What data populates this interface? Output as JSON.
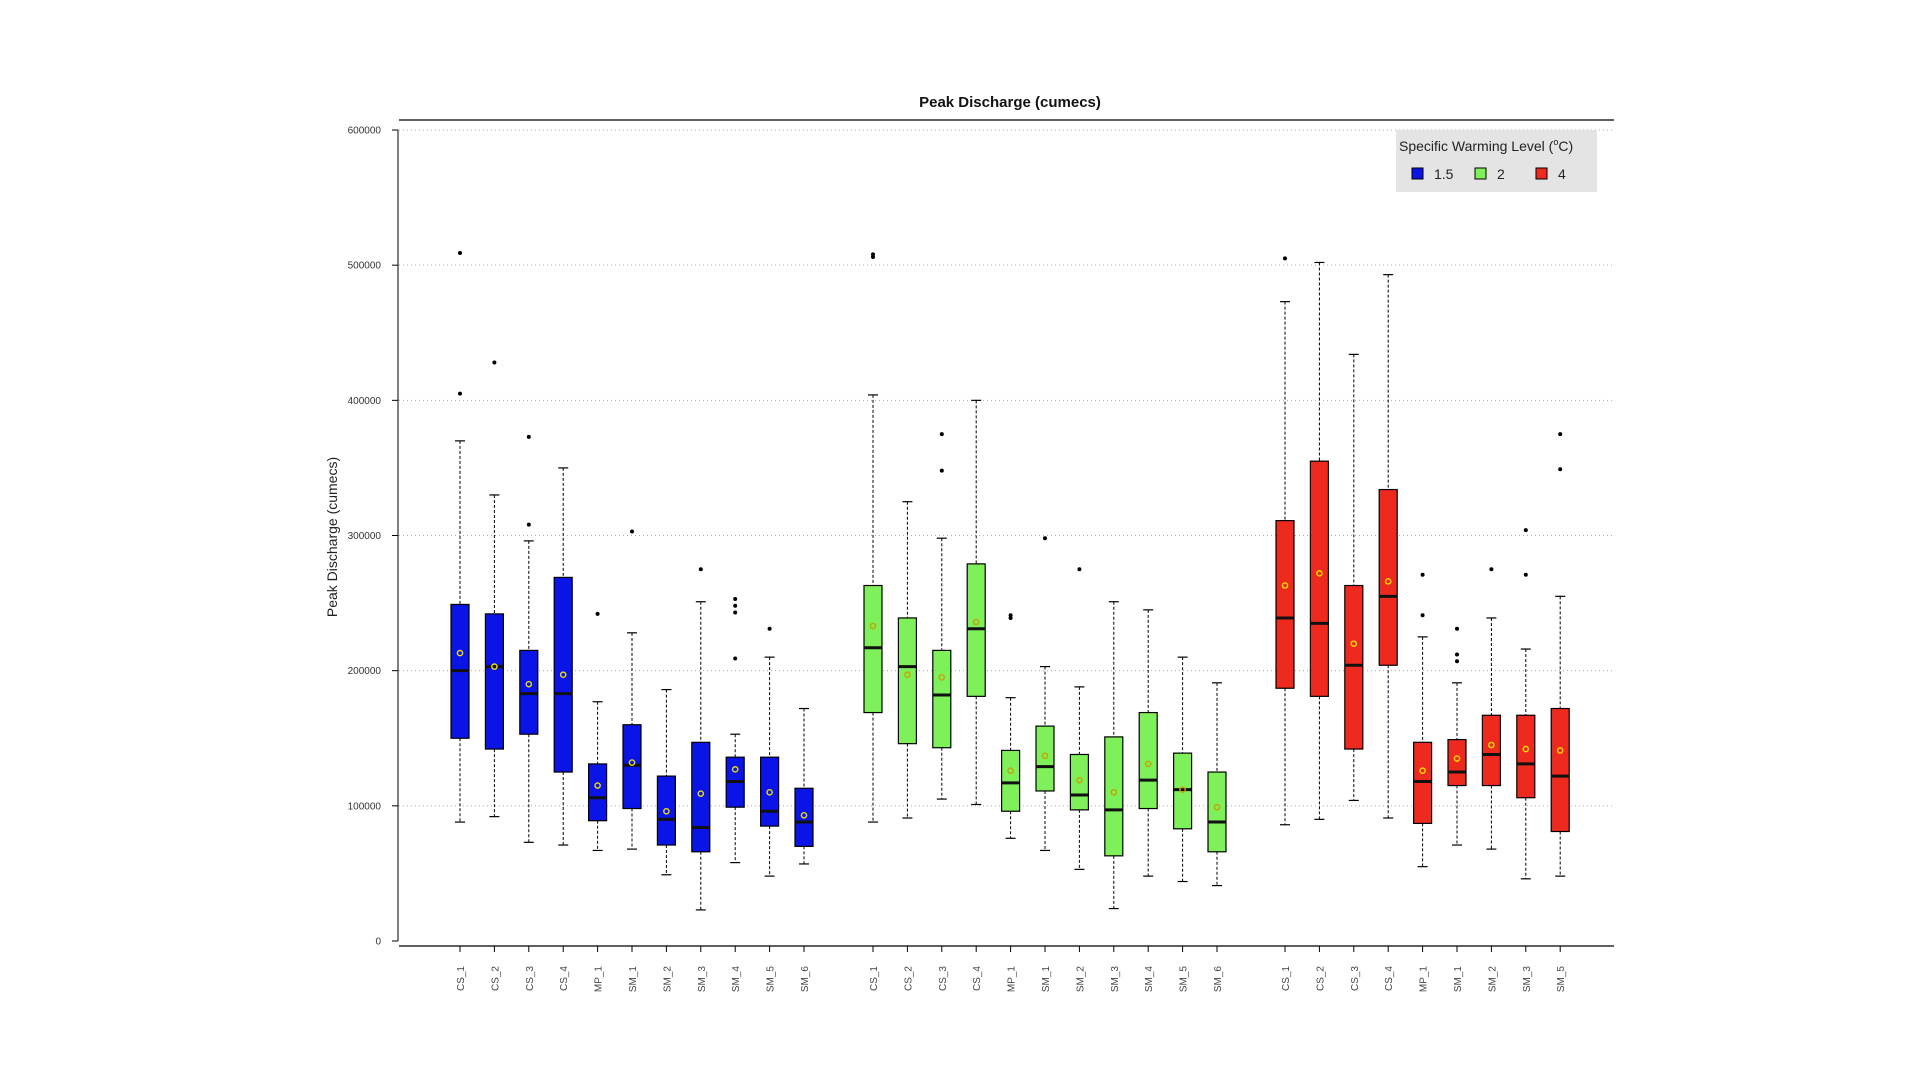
{
  "chart_data": {
    "type": "boxplot",
    "title": "Peak Discharge (cumecs)",
    "xlabel": "",
    "ylabel": "Peak Discharge (cumecs)",
    "ylim": [
      0,
      600000
    ],
    "yticks": [
      0,
      100000,
      200000,
      300000,
      400000,
      500000,
      600000
    ],
    "ytick_labels": [
      "0",
      "100000",
      "200000",
      "300000",
      "400000",
      "500000",
      "600000"
    ],
    "grid": true,
    "legend": {
      "title": "Specific Warming Level (",
      "title_sup": "o",
      "title_end": "C)",
      "position": "top-right",
      "entries": [
        {
          "label": "1.5",
          "color": "#0a14e6"
        },
        {
          "label": "2",
          "color": "#7df05a"
        },
        {
          "label": "4",
          "color": "#ee2a1f"
        }
      ]
    },
    "groups": [
      {
        "name": "1.5",
        "color": "#0a14e6",
        "mean_color": "#f0e000",
        "boxes": [
          {
            "label": "CS_1",
            "whisker_low": 88000,
            "q1": 150000,
            "median": 200000,
            "q3": 249000,
            "whisker_high": 370000,
            "mean": 213000,
            "outliers": [
              405000,
              509000
            ]
          },
          {
            "label": "CS_2",
            "whisker_low": 92000,
            "q1": 142000,
            "median": 203000,
            "q3": 242000,
            "whisker_high": 330000,
            "mean": 203000,
            "outliers": [
              428000
            ]
          },
          {
            "label": "CS_3",
            "whisker_low": 73000,
            "q1": 153000,
            "median": 183000,
            "q3": 215000,
            "whisker_high": 296000,
            "mean": 190000,
            "outliers": [
              308000,
              373000
            ]
          },
          {
            "label": "CS_4",
            "whisker_low": 71000,
            "q1": 125000,
            "median": 183000,
            "q3": 269000,
            "whisker_high": 350000,
            "mean": 197000,
            "outliers": []
          },
          {
            "label": "MP_1",
            "whisker_low": 67000,
            "q1": 89000,
            "median": 106000,
            "q3": 131000,
            "whisker_high": 177000,
            "mean": 115000,
            "outliers": [
              242000
            ]
          },
          {
            "label": "SM_1",
            "whisker_low": 68000,
            "q1": 98000,
            "median": 130000,
            "q3": 160000,
            "whisker_high": 228000,
            "mean": 132000,
            "outliers": [
              303000
            ]
          },
          {
            "label": "SM_2",
            "whisker_low": 49000,
            "q1": 71000,
            "median": 90000,
            "q3": 122000,
            "whisker_high": 186000,
            "mean": 96000,
            "outliers": []
          },
          {
            "label": "SM_3",
            "whisker_low": 23000,
            "q1": 66000,
            "median": 84000,
            "q3": 147000,
            "whisker_high": 251000,
            "mean": 109000,
            "outliers": [
              275000
            ]
          },
          {
            "label": "SM_4",
            "whisker_low": 58000,
            "q1": 99000,
            "median": 118000,
            "q3": 136000,
            "whisker_high": 153000,
            "mean": 127000,
            "outliers": [
              209000,
              243000,
              248000,
              253000
            ]
          },
          {
            "label": "SM_5",
            "whisker_low": 48000,
            "q1": 85000,
            "median": 96000,
            "q3": 136000,
            "whisker_high": 210000,
            "mean": 110000,
            "outliers": [
              231000
            ]
          },
          {
            "label": "SM_6",
            "whisker_low": 57000,
            "q1": 70000,
            "median": 88000,
            "q3": 113000,
            "whisker_high": 172000,
            "mean": 93000,
            "outliers": []
          }
        ]
      },
      {
        "name": "2",
        "color": "#7df05a",
        "mean_color": "#c8a000",
        "boxes": [
          {
            "label": "CS_1",
            "whisker_low": 88000,
            "q1": 169000,
            "median": 217000,
            "q3": 263000,
            "whisker_high": 404000,
            "mean": 233000,
            "outliers": [
              506000,
              508000
            ]
          },
          {
            "label": "CS_2",
            "whisker_low": 91000,
            "q1": 146000,
            "median": 203000,
            "q3": 239000,
            "whisker_high": 325000,
            "mean": 197000,
            "outliers": []
          },
          {
            "label": "CS_3",
            "whisker_low": 105000,
            "q1": 143000,
            "median": 182000,
            "q3": 215000,
            "whisker_high": 298000,
            "mean": 195000,
            "outliers": [
              348000,
              375000
            ]
          },
          {
            "label": "CS_4",
            "whisker_low": 101000,
            "q1": 181000,
            "median": 231000,
            "q3": 279000,
            "whisker_high": 400000,
            "mean": 236000,
            "outliers": []
          },
          {
            "label": "MP_1",
            "whisker_low": 76000,
            "q1": 96000,
            "median": 117000,
            "q3": 141000,
            "whisker_high": 180000,
            "mean": 126000,
            "outliers": [
              239000,
              241000
            ]
          },
          {
            "label": "SM_1",
            "whisker_low": 67000,
            "q1": 111000,
            "median": 129000,
            "q3": 159000,
            "whisker_high": 203000,
            "mean": 137000,
            "outliers": [
              298000
            ]
          },
          {
            "label": "SM_2",
            "whisker_low": 53000,
            "q1": 97000,
            "median": 108000,
            "q3": 138000,
            "whisker_high": 188000,
            "mean": 119000,
            "outliers": [
              275000
            ]
          },
          {
            "label": "SM_3",
            "whisker_low": 24000,
            "q1": 63000,
            "median": 97000,
            "q3": 151000,
            "whisker_high": 251000,
            "mean": 110000,
            "outliers": []
          },
          {
            "label": "SM_4",
            "whisker_low": 48000,
            "q1": 98000,
            "median": 119000,
            "q3": 169000,
            "whisker_high": 245000,
            "mean": 131000,
            "outliers": []
          },
          {
            "label": "SM_5",
            "whisker_low": 44000,
            "q1": 83000,
            "median": 112000,
            "q3": 139000,
            "whisker_high": 210000,
            "mean": 112000,
            "outliers": []
          },
          {
            "label": "SM_6",
            "whisker_low": 41000,
            "q1": 66000,
            "median": 88000,
            "q3": 125000,
            "whisker_high": 191000,
            "mean": 99000,
            "outliers": []
          }
        ]
      },
      {
        "name": "4",
        "color": "#ee2a1f",
        "mean_color": "#f0e000",
        "boxes": [
          {
            "label": "CS_1",
            "whisker_low": 86000,
            "q1": 187000,
            "median": 239000,
            "q3": 311000,
            "whisker_high": 473000,
            "mean": 263000,
            "outliers": [
              505000
            ]
          },
          {
            "label": "CS_2",
            "whisker_low": 90000,
            "q1": 181000,
            "median": 235000,
            "q3": 355000,
            "whisker_high": 502000,
            "mean": 272000,
            "outliers": []
          },
          {
            "label": "CS_3",
            "whisker_low": 104000,
            "q1": 142000,
            "median": 204000,
            "q3": 263000,
            "whisker_high": 434000,
            "mean": 220000,
            "outliers": []
          },
          {
            "label": "CS_4",
            "whisker_low": 91000,
            "q1": 204000,
            "median": 255000,
            "q3": 334000,
            "whisker_high": 493000,
            "mean": 266000,
            "outliers": []
          },
          {
            "label": "MP_1",
            "whisker_low": 55000,
            "q1": 87000,
            "median": 118000,
            "q3": 147000,
            "whisker_high": 225000,
            "mean": 126000,
            "outliers": [
              241000,
              271000
            ]
          },
          {
            "label": "SM_1",
            "whisker_low": 71000,
            "q1": 115000,
            "median": 125000,
            "q3": 149000,
            "whisker_high": 191000,
            "mean": 135000,
            "outliers": [
              207000,
              212000,
              231000
            ]
          },
          {
            "label": "SM_2",
            "whisker_low": 68000,
            "q1": 115000,
            "median": 138000,
            "q3": 167000,
            "whisker_high": 239000,
            "mean": 145000,
            "outliers": [
              275000
            ]
          },
          {
            "label": "SM_3",
            "whisker_low": 46000,
            "q1": 106000,
            "median": 131000,
            "q3": 167000,
            "whisker_high": 216000,
            "mean": 142000,
            "outliers": [
              271000,
              304000
            ]
          },
          {
            "label": "SM_5",
            "whisker_low": 48000,
            "q1": 81000,
            "median": 122000,
            "q3": 172000,
            "whisker_high": 255000,
            "mean": 141000,
            "outliers": [
              349000,
              375000
            ]
          }
        ]
      }
    ]
  }
}
